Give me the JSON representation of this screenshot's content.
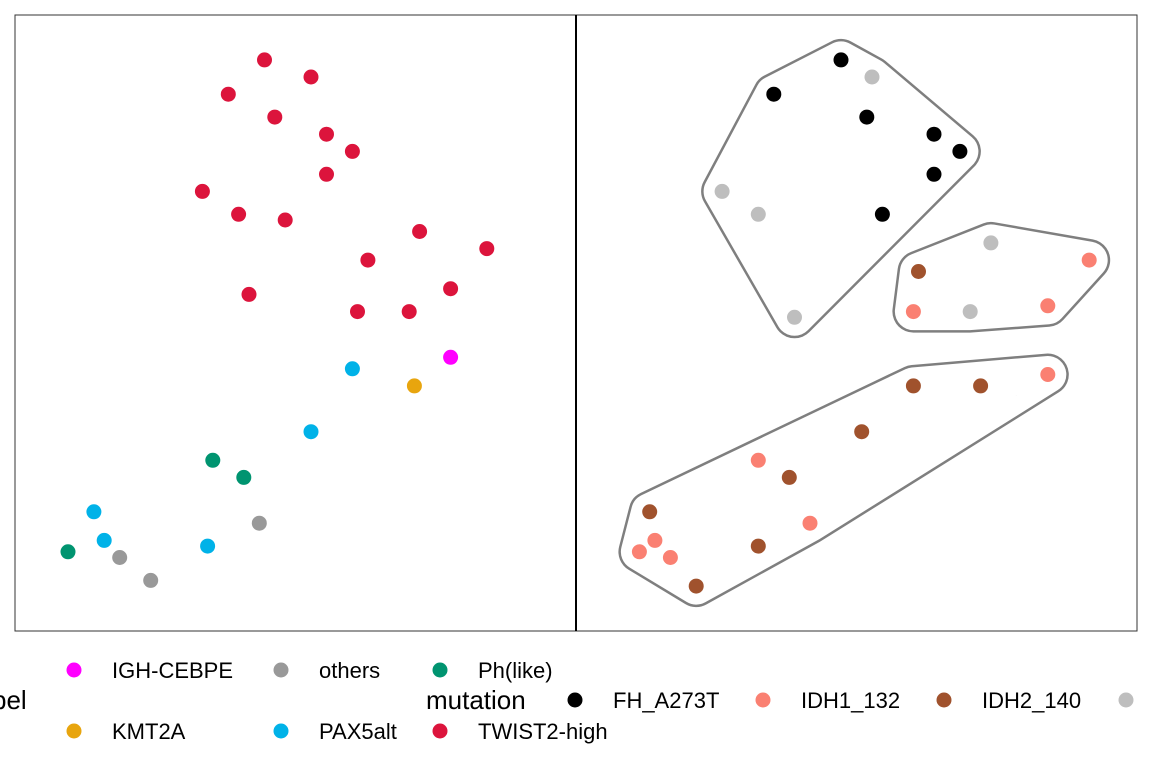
{
  "chart_data": [
    {
      "type": "scatter",
      "facet": "left",
      "color_by": "label",
      "series": [
        {
          "name": "TWIST2-high",
          "color": "#dc143c",
          "points": [
            [
              4.4,
              9.6
            ],
            [
              5.3,
              9.3
            ],
            [
              3.7,
              9.0
            ],
            [
              4.6,
              8.6
            ],
            [
              5.6,
              8.3
            ],
            [
              6.1,
              8.0
            ],
            [
              5.6,
              7.6
            ],
            [
              3.2,
              7.3
            ],
            [
              3.9,
              6.9
            ],
            [
              4.8,
              6.8
            ],
            [
              7.4,
              6.6
            ],
            [
              8.7,
              6.3
            ],
            [
              6.4,
              6.1
            ],
            [
              4.1,
              5.5
            ],
            [
              8.0,
              5.6
            ],
            [
              6.2,
              5.2
            ],
            [
              7.2,
              5.2
            ]
          ]
        },
        {
          "name": "IGH-CEBPE",
          "color": "#ff00ff",
          "points": [
            [
              8.0,
              4.4
            ]
          ]
        },
        {
          "name": "KMT2A",
          "color": "#e8a50e",
          "points": [
            [
              7.3,
              3.9
            ]
          ]
        },
        {
          "name": "PAX5alt",
          "color": "#00b2e8",
          "points": [
            [
              6.1,
              4.2
            ],
            [
              5.3,
              3.1
            ],
            [
              1.1,
              1.7
            ],
            [
              1.3,
              1.2
            ],
            [
              3.3,
              1.1
            ]
          ]
        },
        {
          "name": "Ph(like)",
          "color": "#009470",
          "points": [
            [
              3.4,
              2.6
            ],
            [
              4.0,
              2.3
            ],
            [
              0.6,
              1.0
            ]
          ]
        },
        {
          "name": "others",
          "color": "#999999",
          "points": [
            [
              4.3,
              1.5
            ],
            [
              1.6,
              0.9
            ],
            [
              2.2,
              0.5
            ]
          ]
        }
      ]
    },
    {
      "type": "scatter",
      "facet": "right",
      "color_by": "mutation",
      "series": [
        {
          "name": "FH_A273T",
          "color": "#000000",
          "points": [
            [
              4.7,
              9.6
            ],
            [
              3.4,
              9.0
            ],
            [
              5.2,
              8.6
            ],
            [
              6.5,
              8.3
            ],
            [
              7.0,
              8.0
            ],
            [
              6.5,
              7.6
            ],
            [
              5.5,
              6.9
            ]
          ]
        },
        {
          "name": "IDH1_132",
          "color": "#fa8072",
          "points": [
            [
              9.5,
              6.1
            ],
            [
              8.7,
              5.3
            ],
            [
              6.1,
              5.2
            ],
            [
              8.7,
              4.1
            ],
            [
              3.1,
              2.6
            ],
            [
              4.1,
              1.5
            ],
            [
              1.1,
              1.2
            ],
            [
              0.8,
              1.0
            ],
            [
              1.4,
              0.9
            ]
          ]
        },
        {
          "name": "IDH2_140",
          "color": "#a0522d",
          "points": [
            [
              6.2,
              5.9
            ],
            [
              6.1,
              3.9
            ],
            [
              7.4,
              3.9
            ],
            [
              5.1,
              3.1
            ],
            [
              3.7,
              2.3
            ],
            [
              1.0,
              1.7
            ],
            [
              3.1,
              1.1
            ],
            [
              1.9,
              0.4
            ]
          ]
        },
        {
          "name": "",
          "color": "#bebebe",
          "points": [
            [
              5.3,
              9.3
            ],
            [
              2.4,
              7.3
            ],
            [
              3.1,
              6.9
            ],
            [
              7.6,
              6.4
            ],
            [
              3.8,
              5.1
            ],
            [
              7.2,
              5.2
            ]
          ]
        }
      ],
      "hulls": [
        "top",
        "middle",
        "bottom"
      ]
    }
  ],
  "legends": {
    "label": {
      "title": "bel",
      "items": [
        {
          "name": "IGH-CEBPE",
          "color": "#ff00ff"
        },
        {
          "name": "others",
          "color": "#999999"
        },
        {
          "name": "Ph(like)",
          "color": "#009470"
        },
        {
          "name": "KMT2A",
          "color": "#e8a50e"
        },
        {
          "name": "PAX5alt",
          "color": "#00b2e8"
        },
        {
          "name": "TWIST2-high",
          "color": "#dc143c"
        }
      ]
    },
    "mutation": {
      "title": "mutation",
      "items": [
        {
          "name": "FH_A273T",
          "color": "#000000"
        },
        {
          "name": "IDH1_132",
          "color": "#fa8072"
        },
        {
          "name": "IDH2_140",
          "color": "#a0522d"
        },
        {
          "name": "",
          "color": "#bebebe"
        }
      ]
    }
  }
}
